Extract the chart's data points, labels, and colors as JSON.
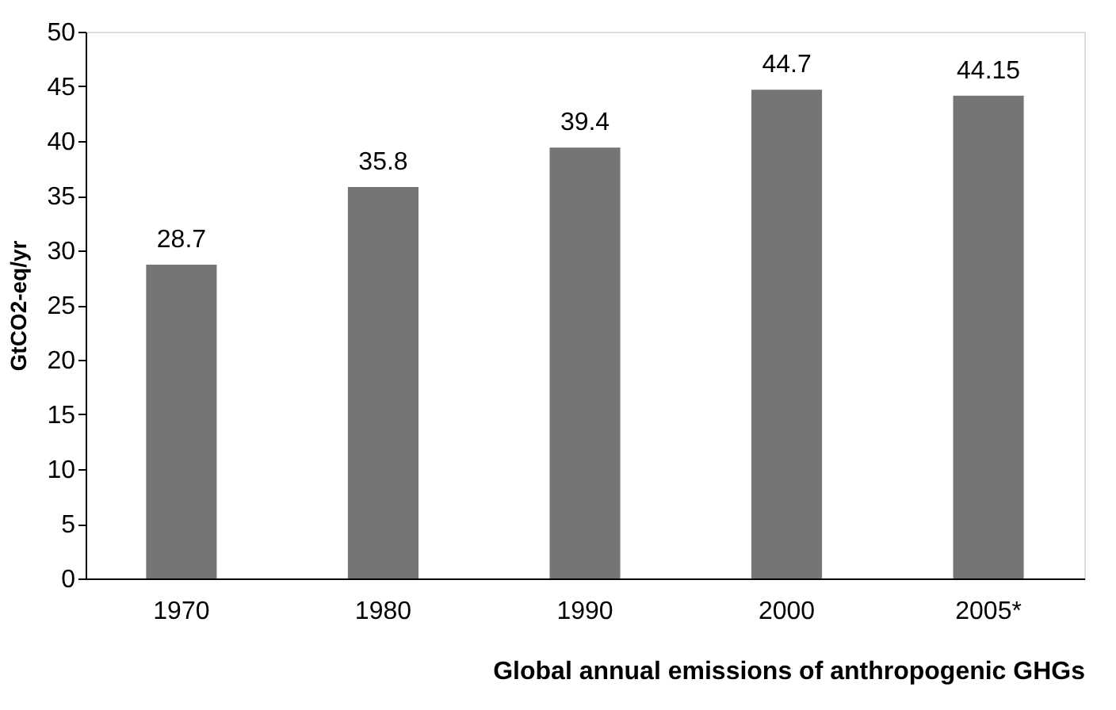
{
  "chart_data": {
    "type": "bar",
    "xlabel": "Global annual emissions of anthropogenic GHGs",
    "ylabel": "GtCO2-eq/yr",
    "categories": [
      "1970",
      "1980",
      "1990",
      "2000",
      "2005*"
    ],
    "values": [
      28.7,
      35.8,
      39.4,
      44.7,
      44.15
    ],
    "color": "#757575",
    "ylim": [
      0,
      50
    ],
    "yticks": [
      0,
      5,
      10,
      15,
      20,
      25,
      30,
      35,
      40,
      45,
      50
    ],
    "grid": false,
    "data_labels": true
  }
}
